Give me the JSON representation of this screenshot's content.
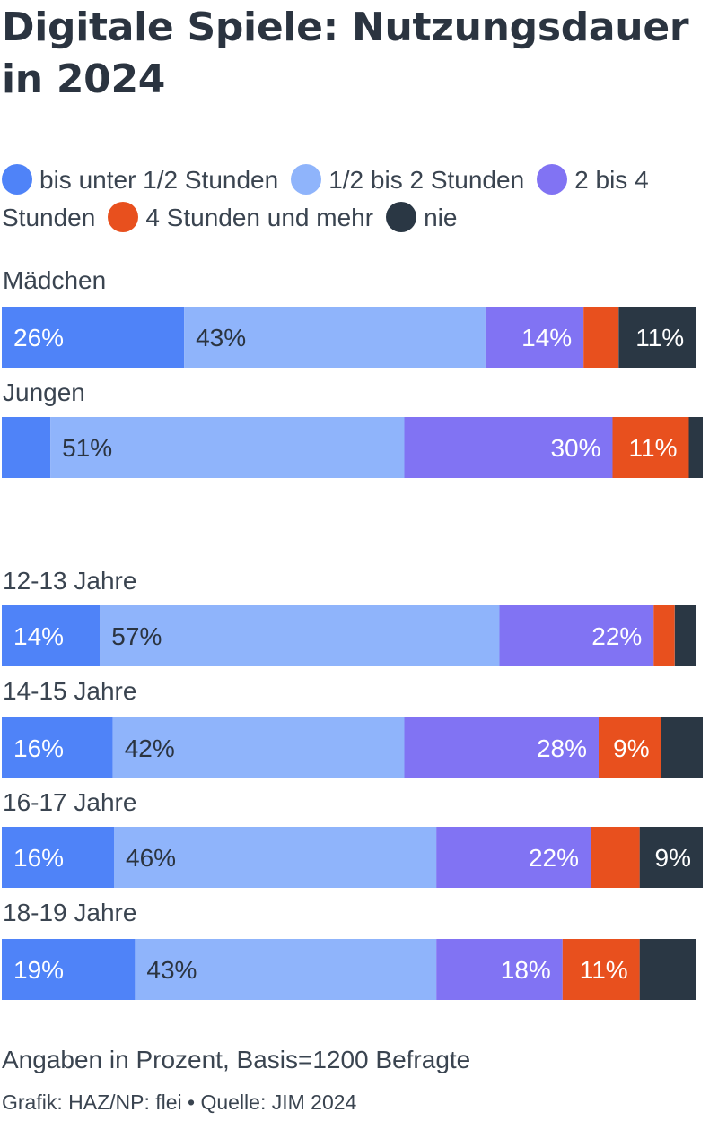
{
  "title": "Digitale Spiele: Nutzungsdauer in 2024",
  "note": "Angaben in Prozent, Basis=1200 Befragte",
  "source": "Grafik: HAZ/NP: flei • Quelle: JIM 2024",
  "chart_data": {
    "type": "bar",
    "orientation": "horizontal",
    "stacked": true,
    "title": "Digitale Spiele: Nutzungsdauer in 2024",
    "unit": "Prozent",
    "legend_position": "top",
    "categories": [
      "Mädchen",
      "Jungen",
      "12-13 Jahre",
      "14-15 Jahre",
      "16-17 Jahre",
      "18-19 Jahre"
    ],
    "series": [
      {
        "name": "bis unter 1/2 Stunden",
        "color": "#4f83f8",
        "label_color": "#ffffff",
        "values": [
          26,
          7,
          14,
          16,
          16,
          19
        ]
      },
      {
        "name": "1/2 bis 2 Stunden",
        "color": "#8fb4fb",
        "label_color": "#2b3440",
        "values": [
          43,
          51,
          57,
          42,
          46,
          43
        ]
      },
      {
        "name": "2 bis 4 Stunden",
        "color": "#8173f3",
        "label_color": "#ffffff",
        "values": [
          14,
          30,
          22,
          28,
          22,
          18
        ]
      },
      {
        "name": "4 Stunden und mehr",
        "color": "#e8501e",
        "label_color": "#ffffff",
        "values": [
          5,
          11,
          3,
          9,
          7,
          11
        ]
      },
      {
        "name": "nie",
        "color": "#2a3744",
        "label_color": "#ffffff",
        "values": [
          11,
          2,
          3,
          6,
          9,
          8
        ]
      }
    ],
    "data_labels": [
      [
        "26%",
        "43%",
        "14%",
        "",
        "11%"
      ],
      [
        "",
        "51%",
        "30%",
        "11%",
        ""
      ],
      [
        "14%",
        "57%",
        "22%",
        "",
        ""
      ],
      [
        "16%",
        "42%",
        "28%",
        "9%",
        ""
      ],
      [
        "16%",
        "46%",
        "22%",
        "",
        "9%"
      ],
      [
        "19%",
        "43%",
        "18%",
        "11%",
        ""
      ]
    ],
    "xlim": [
      0,
      100
    ],
    "grid": false
  }
}
